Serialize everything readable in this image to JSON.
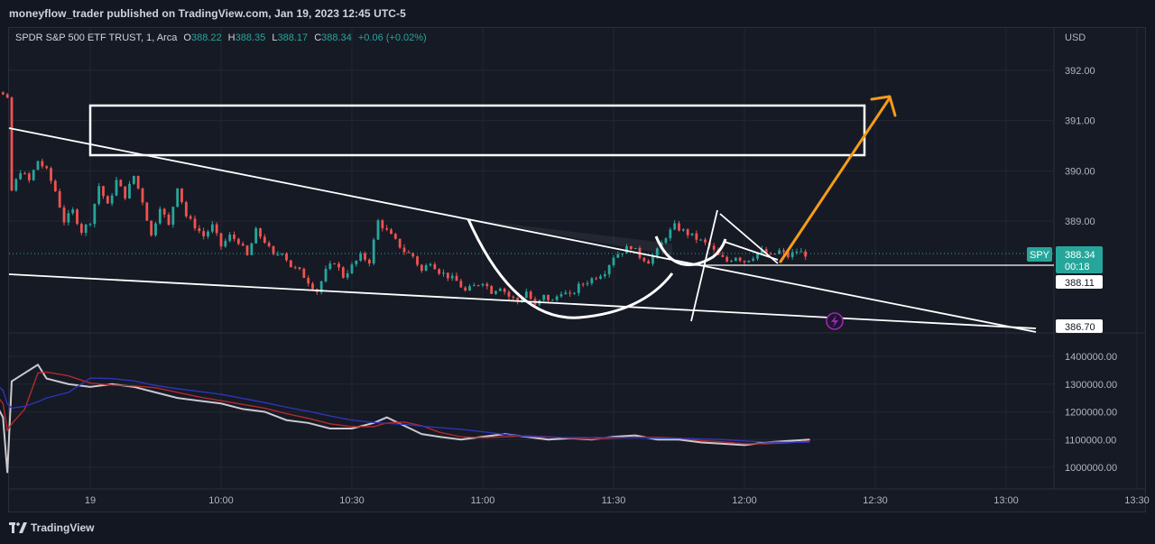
{
  "header": {
    "publisher_text": "moneyflow_trader published on TradingView.com, Jan 19, 2023 12:45 UTC-5"
  },
  "legend": {
    "symbol": "SPDR S&P 500 ETF TRUST, 1, Arca",
    "open_label": "O",
    "open": "388.22",
    "high_label": "H",
    "high": "388.35",
    "low_label": "L",
    "low": "388.17",
    "close_label": "C",
    "close": "388.34",
    "change": "+0.06 (+0.02%)"
  },
  "price_axis": {
    "currency": "USD",
    "ticks": [
      "392.00",
      "391.00",
      "390.00",
      "389.00"
    ],
    "badge_symbol": "SPY",
    "badge_price": "388.34",
    "badge_countdown": "00:18",
    "label_support": "388.11",
    "label_low": "386.70"
  },
  "volume_axis": {
    "ticks": [
      "1400000.00",
      "1300000.00",
      "1200000.00",
      "1100000.00",
      "1000000.00"
    ]
  },
  "time_axis": {
    "ticks": [
      "19",
      "10:00",
      "10:30",
      "11:00",
      "11:30",
      "12:00",
      "12:30",
      "13:00",
      "13:30"
    ]
  },
  "colors": {
    "up": "#26a69a",
    "down": "#ef5350",
    "drawing": "#ffffff",
    "arrow": "#f59b1a",
    "alert": "#9c27b0"
  },
  "footer": {
    "brand": "TradingView"
  },
  "chart_data": {
    "type": "candlestick",
    "title": "SPDR S&P 500 ETF TRUST, 1, Arca",
    "ylim": [
      386.6,
      392.3
    ],
    "price_series": [
      [
        "09:30",
        392.2
      ],
      [
        "09:32",
        391.9
      ],
      [
        "09:34",
        391.8
      ],
      [
        "09:36",
        391.6
      ],
      [
        "09:38",
        391.9
      ],
      [
        "09:40",
        391.6
      ],
      [
        "09:42",
        391.4
      ],
      [
        "09:43",
        389.6
      ],
      [
        "09:45",
        390.0
      ],
      [
        "09:47",
        389.8
      ],
      [
        "09:49",
        390.2
      ],
      [
        "09:51",
        390.0
      ],
      [
        "09:53",
        389.6
      ],
      [
        "09:55",
        389.0
      ],
      [
        "09:57",
        389.2
      ],
      [
        "09:59",
        388.8
      ],
      [
        "10:01",
        389.0
      ],
      [
        "10:03",
        389.7
      ],
      [
        "10:05",
        389.3
      ],
      [
        "10:07",
        389.8
      ],
      [
        "10:09",
        389.5
      ],
      [
        "10:11",
        389.9
      ],
      [
        "10:13",
        389.4
      ],
      [
        "10:15",
        388.7
      ],
      [
        "10:17",
        389.3
      ],
      [
        "10:19",
        388.9
      ],
      [
        "10:21",
        389.7
      ],
      [
        "10:23",
        389.1
      ],
      [
        "10:25",
        388.9
      ],
      [
        "10:27",
        388.7
      ],
      [
        "10:29",
        388.9
      ],
      [
        "10:31",
        388.5
      ],
      [
        "10:33",
        388.7
      ],
      [
        "10:35",
        388.6
      ],
      [
        "10:37",
        388.3
      ],
      [
        "10:39",
        388.8
      ],
      [
        "10:41",
        388.6
      ],
      [
        "10:43",
        388.3
      ],
      [
        "10:45",
        388.4
      ],
      [
        "10:47",
        388.1
      ],
      [
        "10:49",
        388.0
      ],
      [
        "10:51",
        387.8
      ],
      [
        "10:53",
        387.6
      ],
      [
        "10:55",
        388.0
      ],
      [
        "10:57",
        388.2
      ],
      [
        "10:59",
        387.9
      ],
      [
        "11:01",
        388.1
      ],
      [
        "11:03",
        388.3
      ],
      [
        "11:05",
        388.2
      ],
      [
        "11:07",
        389.0
      ],
      [
        "11:09",
        388.8
      ],
      [
        "11:11",
        388.6
      ],
      [
        "11:13",
        388.4
      ],
      [
        "11:15",
        388.3
      ],
      [
        "11:17",
        388.0
      ],
      [
        "11:19",
        388.2
      ],
      [
        "11:21",
        388.0
      ],
      [
        "11:23",
        387.9
      ],
      [
        "11:25",
        387.8
      ],
      [
        "11:27",
        387.6
      ],
      [
        "11:29",
        387.7
      ],
      [
        "11:31",
        387.8
      ],
      [
        "11:33",
        387.6
      ],
      [
        "11:35",
        387.7
      ],
      [
        "11:37",
        387.5
      ],
      [
        "11:39",
        387.4
      ],
      [
        "11:41",
        387.6
      ],
      [
        "11:43",
        387.3
      ],
      [
        "11:45",
        387.5
      ],
      [
        "11:47",
        387.4
      ],
      [
        "11:49",
        387.6
      ],
      [
        "11:51",
        387.5
      ],
      [
        "11:53",
        387.7
      ],
      [
        "11:55",
        387.8
      ],
      [
        "11:57",
        387.9
      ],
      [
        "11:59",
        388.0
      ],
      [
        "12:01",
        388.3
      ],
      [
        "12:03",
        388.4
      ],
      [
        "12:05",
        388.5
      ],
      [
        "12:07",
        388.3
      ],
      [
        "12:09",
        388.2
      ],
      [
        "12:11",
        388.4
      ],
      [
        "12:13",
        388.7
      ],
      [
        "12:15",
        388.9
      ],
      [
        "12:17",
        388.8
      ],
      [
        "12:19",
        388.7
      ],
      [
        "12:21",
        388.6
      ],
      [
        "12:23",
        388.5
      ],
      [
        "12:25",
        388.3
      ],
      [
        "12:27",
        388.2
      ],
      [
        "12:29",
        388.3
      ],
      [
        "12:31",
        388.2
      ],
      [
        "12:33",
        388.3
      ],
      [
        "12:35",
        388.4
      ],
      [
        "12:37",
        388.3
      ],
      [
        "12:39",
        388.4
      ],
      [
        "12:41",
        388.3
      ],
      [
        "12:43",
        388.4
      ],
      [
        "12:45",
        388.34
      ]
    ],
    "volume_ylim": [
      950000,
      1450000
    ],
    "volume_series": [
      [
        "09:30",
        1400000
      ],
      [
        "09:33",
        1300000
      ],
      [
        "09:36",
        1270000
      ],
      [
        "09:38",
        1240000
      ],
      [
        "09:40",
        1180000
      ],
      [
        "09:41",
        980000
      ],
      [
        "09:42",
        1310000
      ],
      [
        "09:45",
        1340000
      ],
      [
        "09:48",
        1370000
      ],
      [
        "09:50",
        1320000
      ],
      [
        "09:55",
        1300000
      ],
      [
        "10:00",
        1290000
      ],
      [
        "10:05",
        1300000
      ],
      [
        "10:10",
        1290000
      ],
      [
        "10:15",
        1270000
      ],
      [
        "10:20",
        1250000
      ],
      [
        "10:25",
        1240000
      ],
      [
        "10:30",
        1230000
      ],
      [
        "10:35",
        1210000
      ],
      [
        "10:40",
        1200000
      ],
      [
        "10:45",
        1170000
      ],
      [
        "10:50",
        1160000
      ],
      [
        "10:55",
        1140000
      ],
      [
        "11:00",
        1140000
      ],
      [
        "11:05",
        1160000
      ],
      [
        "11:08",
        1180000
      ],
      [
        "11:12",
        1150000
      ],
      [
        "11:16",
        1120000
      ],
      [
        "11:20",
        1110000
      ],
      [
        "11:25",
        1100000
      ],
      [
        "11:30",
        1110000
      ],
      [
        "11:35",
        1120000
      ],
      [
        "11:40",
        1110000
      ],
      [
        "11:45",
        1100000
      ],
      [
        "11:50",
        1105000
      ],
      [
        "11:55",
        1100000
      ],
      [
        "12:00",
        1110000
      ],
      [
        "12:05",
        1115000
      ],
      [
        "12:10",
        1100000
      ],
      [
        "12:15",
        1100000
      ],
      [
        "12:20",
        1090000
      ],
      [
        "12:25",
        1085000
      ],
      [
        "12:30",
        1080000
      ],
      [
        "12:35",
        1090000
      ],
      [
        "12:40",
        1095000
      ],
      [
        "12:45",
        1100000
      ]
    ]
  }
}
